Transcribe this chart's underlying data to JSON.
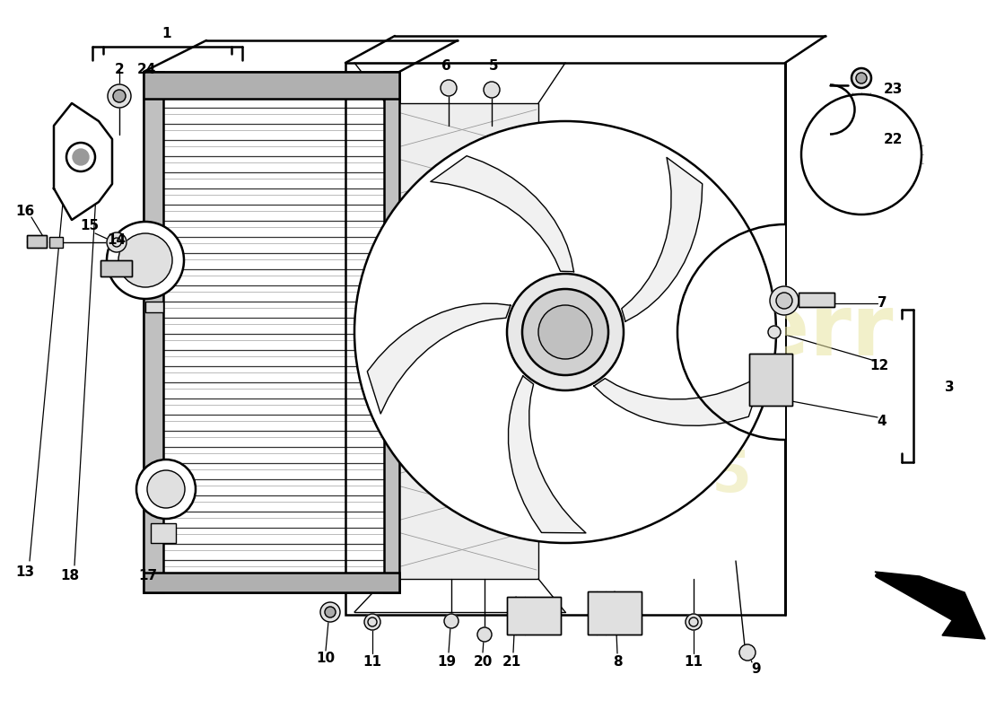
{
  "background_color": "#ffffff",
  "line_color": "#000000",
  "watermark_color": "#e8e4a0",
  "font_size": 11
}
